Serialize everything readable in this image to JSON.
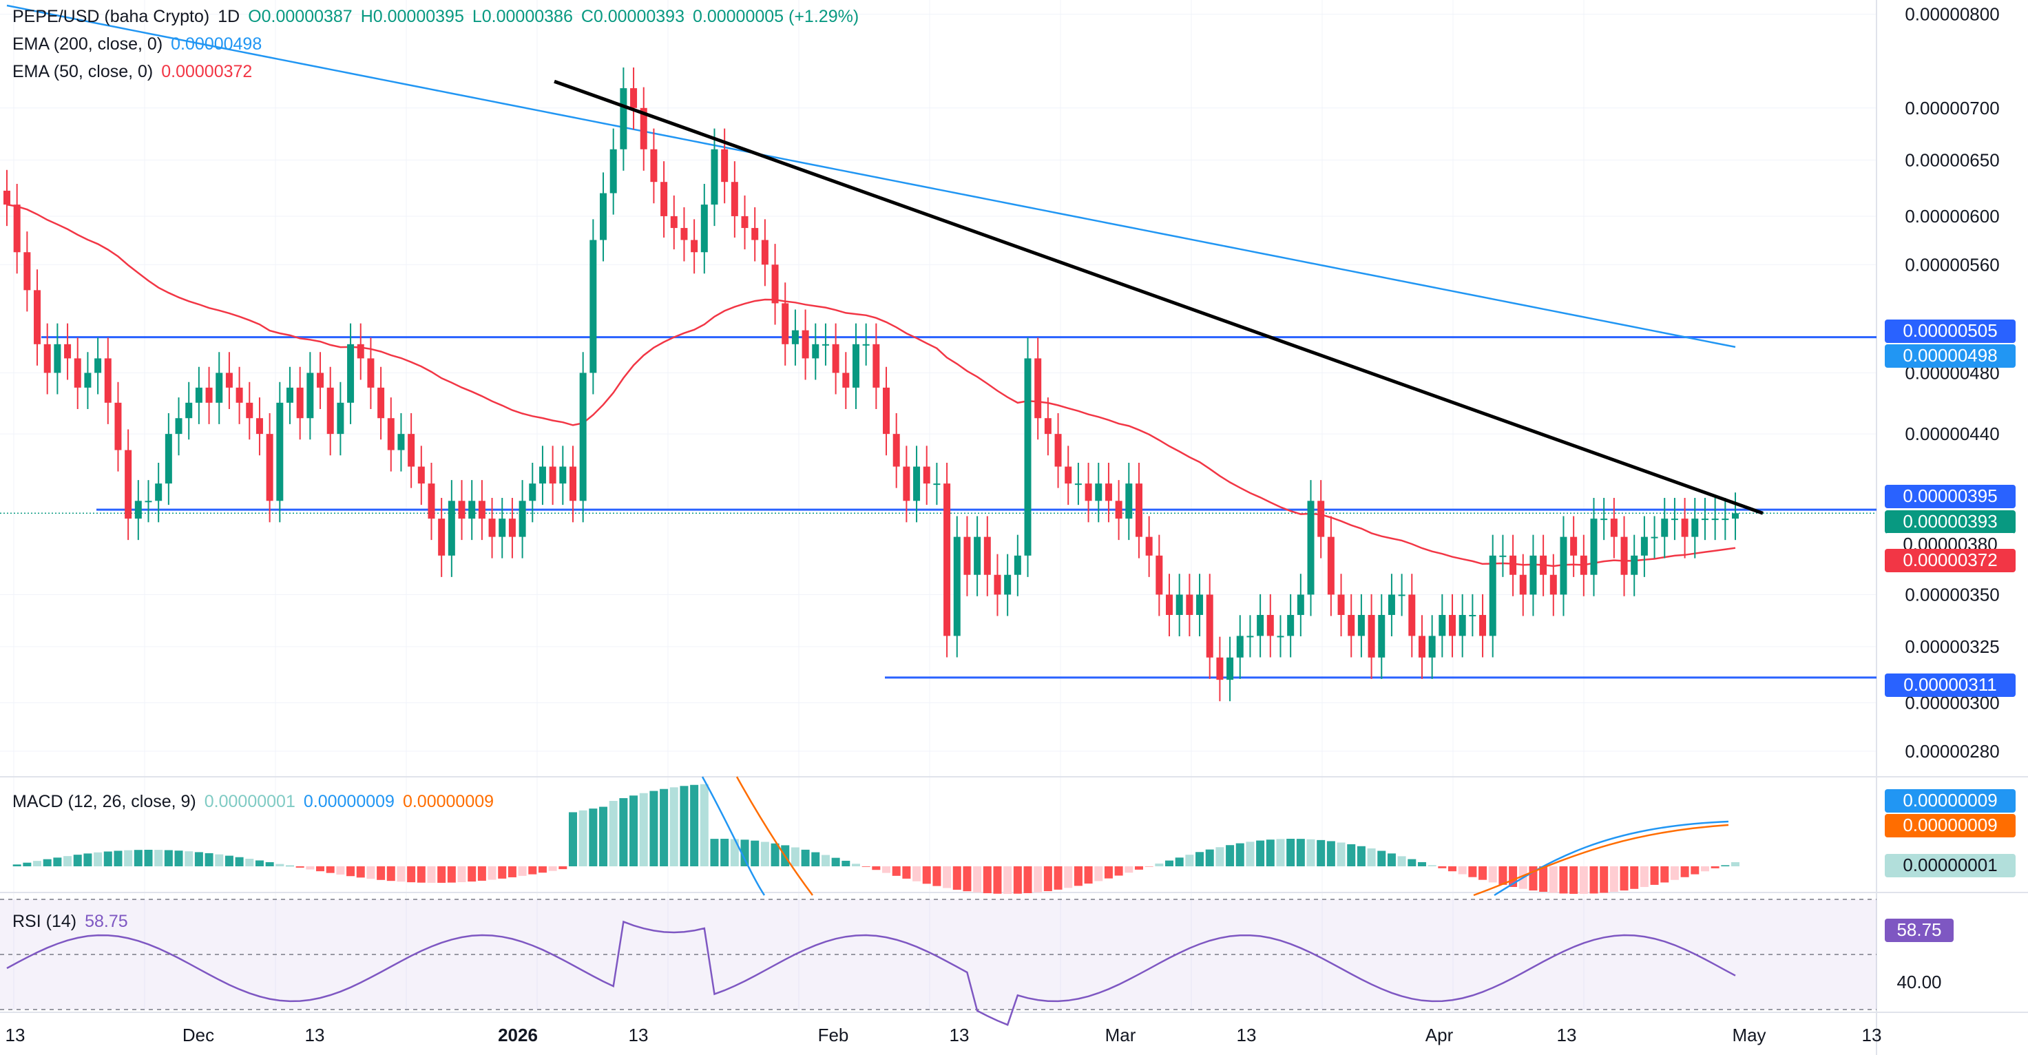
{
  "header": {
    "symbol": "PEPE/USD (baha Crypto)",
    "interval": "1D",
    "open": "O0.00000387",
    "high": "H0.00000395",
    "low": "L0.00000386",
    "close": "C0.00000393",
    "change": "0.00000005 (+1.29%)"
  },
  "indicators": {
    "ema200": {
      "label": "EMA (200, close, 0)",
      "value": "0.00000498",
      "color": "#2196f3"
    },
    "ema50": {
      "label": "EMA (50, close, 0)",
      "value": "0.00000372",
      "color": "#f23645"
    },
    "macd": {
      "label": "MACD (12, 26, close, 9)",
      "hist": "0.00000001",
      "macd": "0.00000009",
      "signal": "0.00000009"
    },
    "rsi": {
      "label": "RSI (14)",
      "value": "58.75"
    }
  },
  "price_axis": {
    "ticks": [
      "0.00000800",
      "0.00000700",
      "0.00000650",
      "0.00000600",
      "0.00000560",
      "0.00000480",
      "0.00000440",
      "0.00000350",
      "0.00000325",
      "0.00000300",
      "0.00000280"
    ],
    "badges": [
      {
        "text": "0.00000505",
        "color": "#2962ff"
      },
      {
        "text": "0.00000498",
        "color": "#2196f3"
      },
      {
        "text": "0.00000395",
        "color": "#2962ff"
      },
      {
        "text": "0.00000393",
        "color": "#089981"
      },
      {
        "text": "0.00000380",
        "color": "#ffffff"
      },
      {
        "text": "0.00000372",
        "color": "#f23645"
      },
      {
        "text": "0.00000311",
        "color": "#2962ff"
      }
    ],
    "macd_badges": [
      {
        "text": "0.00000009",
        "color": "#2196f3"
      },
      {
        "text": "0.00000009",
        "color": "#ff6d00"
      },
      {
        "text": "0.00000001",
        "color": "#b2dfdb"
      }
    ],
    "rsi_badges": [
      {
        "text": "58.75",
        "color": "#7e57c2"
      },
      {
        "text": "40.00",
        "color": "#ffffff"
      }
    ]
  },
  "time_axis": [
    "13",
    "Dec",
    "13",
    "2026",
    "13",
    "Feb",
    "13",
    "Mar",
    "13",
    "Apr",
    "13",
    "May",
    "13"
  ],
  "chart_data": {
    "type": "candlestick",
    "scale": "log",
    "ylim": [
      2.7e-06,
      8.1e-06
    ],
    "colors": {
      "up": "#089981",
      "down": "#f23645"
    },
    "series_summary": {
      "ema200_range": [
        8.1e-06,
        4.98e-06
      ],
      "ema50_last": 3.72e-06,
      "last_close": 3.93e-06
    },
    "horizontal_levels": [
      5.05e-06,
      3.95e-06,
      3.11e-06
    ],
    "trendline": {
      "from": {
        "date": "2026-01-06",
        "price": 7.27e-06
      },
      "to": {
        "date": "2026-04-30",
        "price": 3.93e-06
      }
    },
    "closes": [
      6.1e-06,
      5.7e-06,
      5.4e-06,
      5e-06,
      4.8e-06,
      5e-06,
      4.9e-06,
      4.7e-06,
      4.8e-06,
      4.9e-06,
      4.6e-06,
      4.3e-06,
      3.9e-06,
      4e-06,
      4e-06,
      4.1e-06,
      4.4e-06,
      4.5e-06,
      4.6e-06,
      4.7e-06,
      4.6e-06,
      4.8e-06,
      4.7e-06,
      4.6e-06,
      4.5e-06,
      4.4e-06,
      4e-06,
      4.6e-06,
      4.7e-06,
      4.5e-06,
      4.8e-06,
      4.7e-06,
      4.4e-06,
      4.6e-06,
      5e-06,
      4.9e-06,
      4.7e-06,
      4.5e-06,
      4.3e-06,
      4.4e-06,
      4.2e-06,
      4.1e-06,
      3.9e-06,
      3.7e-06,
      4e-06,
      3.9e-06,
      4e-06,
      3.9e-06,
      3.8e-06,
      3.9e-06,
      3.8e-06,
      4e-06,
      4.1e-06,
      4.2e-06,
      4.1e-06,
      4.2e-06,
      4e-06,
      4.8e-06,
      5.8e-06,
      6.2e-06,
      6.6e-06,
      7.2e-06,
      7e-06,
      6.6e-06,
      6.3e-06,
      6e-06,
      5.9e-06,
      5.8e-06,
      5.7e-06,
      6.1e-06,
      6.6e-06,
      6.3e-06,
      6e-06,
      5.9e-06,
      5.8e-06,
      5.6e-06,
      5.3e-06,
      5e-06,
      5.1e-06,
      4.9e-06,
      5e-06,
      5e-06,
      4.8e-06,
      4.7e-06,
      5e-06,
      5e-06,
      4.7e-06,
      4.4e-06,
      4.2e-06,
      4e-06,
      4.2e-06,
      4.1e-06,
      4.1e-06,
      3.3e-06,
      3.8e-06,
      3.6e-06,
      3.8e-06,
      3.6e-06,
      3.5e-06,
      3.6e-06,
      3.7e-06,
      4.9e-06,
      4.5e-06,
      4.4e-06,
      4.2e-06,
      4.1e-06,
      4.1e-06,
      4e-06,
      4.1e-06,
      4e-06,
      3.9e-06,
      4.1e-06,
      3.8e-06,
      3.7e-06,
      3.5e-06,
      3.4e-06,
      3.5e-06,
      3.4e-06,
      3.5e-06,
      3.2e-06,
      3.1e-06,
      3.2e-06,
      3.3e-06,
      3.3e-06,
      3.4e-06,
      3.3e-06,
      3.3e-06,
      3.4e-06,
      3.5e-06,
      4e-06,
      3.8e-06,
      3.5e-06,
      3.4e-06,
      3.3e-06,
      3.4e-06,
      3.2e-06,
      3.4e-06,
      3.5e-06,
      3.5e-06,
      3.3e-06,
      3.2e-06,
      3.3e-06,
      3.4e-06,
      3.3e-06,
      3.4e-06,
      3.4e-06,
      3.3e-06,
      3.7e-06,
      3.7e-06,
      3.6e-06,
      3.5e-06,
      3.7e-06,
      3.6e-06,
      3.5e-06,
      3.8e-06,
      3.7e-06,
      3.6e-06,
      3.9e-06,
      3.9e-06,
      3.8e-06,
      3.6e-06,
      3.7e-06,
      3.8e-06,
      3.8e-06,
      3.9e-06,
      3.9e-06,
      3.8e-06,
      3.9e-06,
      3.9e-06,
      3.9e-06,
      3.9e-06,
      3.93e-06
    ]
  }
}
